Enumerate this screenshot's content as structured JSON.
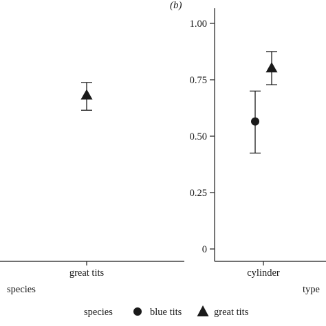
{
  "panel_b_label": "(b)",
  "legend": {
    "title": "species",
    "entries": [
      {
        "label": "blue tits",
        "marker": "circle"
      },
      {
        "label": "great tits",
        "marker": "triangle"
      }
    ]
  },
  "chart_data": [
    {
      "type": "scatter",
      "panel": "a",
      "title": "",
      "xlabel": "species",
      "ylabel": "",
      "categories": [
        "great tits"
      ],
      "series": [
        {
          "name": "great tits",
          "marker": "triangle",
          "x": [
            "great tits"
          ],
          "y": [
            0.68
          ],
          "err_low": [
            0.615
          ],
          "err_high": [
            0.738
          ]
        }
      ],
      "ylim": [
        0,
        1.05
      ],
      "grid": false,
      "colors": {
        "mark": "#1a1a1a"
      }
    },
    {
      "type": "scatter",
      "panel": "b",
      "title": "",
      "xlabel": "type",
      "ylabel": "",
      "categories": [
        "cylinder"
      ],
      "yticks": [
        "0",
        "0.25",
        "0.50",
        "0.75",
        "1.00"
      ],
      "series": [
        {
          "name": "blue tits",
          "marker": "circle",
          "x": [
            "cylinder"
          ],
          "y": [
            0.565
          ],
          "err_low": [
            0.425
          ],
          "err_high": [
            0.7
          ]
        },
        {
          "name": "great tits",
          "marker": "triangle",
          "x": [
            "cylinder"
          ],
          "y": [
            0.8
          ],
          "err_low": [
            0.728
          ],
          "err_high": [
            0.875
          ]
        }
      ],
      "ylim": [
        0,
        1.05
      ],
      "grid": false,
      "colors": {
        "mark": "#1a1a1a"
      }
    }
  ]
}
